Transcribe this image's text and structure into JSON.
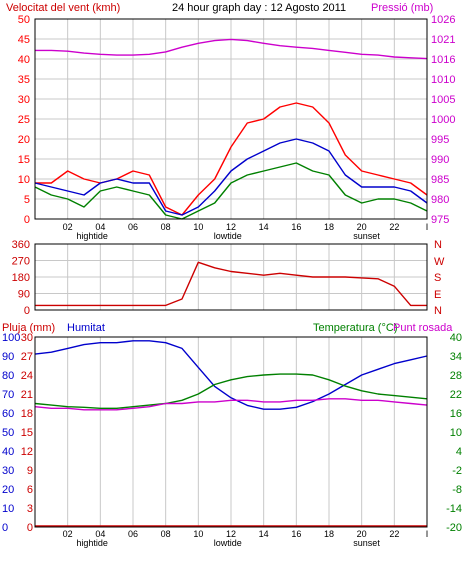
{
  "header": {
    "wind_title": "Velocitat del vent (kmh)",
    "graph_title": "24 hour graph day : 12 Agosto 2011",
    "pressure_title": "Pressió (mb)"
  },
  "bottom_header": {
    "rain_label": "Pluja (mm)",
    "humidity_label": "Humitat",
    "temperature_label": "Temperatura (°C)",
    "dewpoint_label": "Punt rosada"
  },
  "x_axis": {
    "tick_labels": [
      "02",
      "04",
      "06",
      "08",
      "10",
      "12",
      "14",
      "16",
      "18",
      "20",
      "22",
      "I"
    ],
    "event_labels": [
      {
        "label": "hightide",
        "hour": 3.5
      },
      {
        "label": "lowtide",
        "hour": 11.8
      },
      {
        "label": "sunset",
        "hour": 20.3
      }
    ]
  },
  "colors": {
    "frame": "#000000",
    "grid": "#c8c8c8",
    "wind_speed": "#ff0000",
    "wind_avg": "#0000cc",
    "wind_min": "#008000",
    "pressure": "#cc00cc",
    "wind_dir": "#cc0000",
    "humidity": "#0000cc",
    "temperature": "#008000",
    "dewpoint": "#cc00cc",
    "rain": "#cc0000",
    "compass": "#cc0000"
  },
  "chart_data": [
    {
      "id": "wind_pressure",
      "type": "line",
      "title": "24 hour graph day : 12 Agosto 2011",
      "ylabel_left": "Velocitat del vent (kmh)",
      "ylabel_right": "Pressió (mb)",
      "ylim_left": [
        0,
        50
      ],
      "yticks_left": [
        0,
        5,
        10,
        15,
        20,
        25,
        30,
        35,
        40,
        45,
        50
      ],
      "ylim_right": [
        975,
        1026
      ],
      "yticks_right": [
        975,
        980,
        985,
        990,
        995,
        1000,
        1005,
        1010,
        1016,
        1021,
        1026
      ],
      "x_hours": [
        0,
        1,
        2,
        3,
        4,
        5,
        6,
        7,
        8,
        9,
        10,
        11,
        12,
        13,
        14,
        15,
        16,
        17,
        18,
        19,
        20,
        21,
        22,
        23,
        24
      ],
      "series": [
        {
          "axis": "left",
          "color": "#ff0000",
          "values": [
            9,
            9,
            12,
            10,
            9,
            10,
            12,
            11,
            3,
            1,
            6,
            10,
            18,
            24,
            25,
            28,
            29,
            28,
            24,
            16,
            12,
            11,
            10,
            9,
            6
          ]
        },
        {
          "axis": "left",
          "color": "#0000cc",
          "values": [
            9,
            8,
            7,
            6,
            9,
            10,
            9,
            9,
            2,
            1,
            3,
            7,
            12,
            15,
            17,
            19,
            20,
            19,
            17,
            11,
            8,
            8,
            8,
            7,
            4
          ]
        },
        {
          "axis": "left",
          "color": "#008000",
          "values": [
            8,
            6,
            5,
            3,
            7,
            8,
            7,
            6,
            1,
            0,
            2,
            4,
            9,
            11,
            12,
            13,
            14,
            12,
            11,
            6,
            4,
            5,
            5,
            4,
            2
          ]
        },
        {
          "axis": "right",
          "color": "#cc00cc",
          "values": [
            1018.0,
            1018.0,
            1017.8,
            1017.3,
            1017.0,
            1016.8,
            1016.8,
            1017.0,
            1017.6,
            1018.8,
            1019.8,
            1020.5,
            1020.8,
            1020.5,
            1019.8,
            1019.2,
            1018.8,
            1018.5,
            1018.0,
            1017.5,
            1017.0,
            1016.8,
            1016.3,
            1016.1,
            1015.9
          ]
        }
      ]
    },
    {
      "id": "wind_direction",
      "type": "line",
      "ylim": [
        0,
        360
      ],
      "yticks": [
        0,
        90,
        180,
        270,
        360
      ],
      "compass_labels": [
        "N",
        "W",
        "S",
        "E",
        "N"
      ],
      "x_hours": [
        0,
        1,
        2,
        3,
        4,
        5,
        6,
        7,
        8,
        9,
        10,
        11,
        12,
        13,
        14,
        15,
        16,
        17,
        18,
        19,
        20,
        21,
        22,
        23,
        24
      ],
      "series": [
        {
          "color": "#cc0000",
          "values": [
            25,
            25,
            25,
            25,
            25,
            25,
            25,
            25,
            25,
            60,
            260,
            230,
            210,
            200,
            190,
            200,
            190,
            180,
            180,
            180,
            175,
            170,
            130,
            25,
            25
          ]
        }
      ]
    },
    {
      "id": "humidity_temperature",
      "type": "line",
      "ylabel_left_rain": "Pluja (mm)",
      "ylabel_left_humidity": "Humitat",
      "ylabel_right": "Temperatura (°C)",
      "ylabel_right_dewpoint": "Punt rosada",
      "rain_ticks": [
        0,
        3,
        6,
        9,
        12,
        15,
        18,
        21,
        24,
        27,
        30
      ],
      "humidity_ticks": [
        0,
        10,
        20,
        30,
        40,
        50,
        60,
        70,
        80,
        90,
        100
      ],
      "ylim_humidity": [
        0,
        100
      ],
      "temperature_ticks": [
        -20,
        -14,
        -8,
        -2,
        4,
        10,
        16,
        22,
        28,
        34,
        40
      ],
      "ylim_temperature": [
        -20,
        40
      ],
      "x_hours": [
        0,
        1,
        2,
        3,
        4,
        5,
        6,
        7,
        8,
        9,
        10,
        11,
        12,
        13,
        14,
        15,
        16,
        17,
        18,
        19,
        20,
        21,
        22,
        23,
        24
      ],
      "series": [
        {
          "color": "#0000cc",
          "values": [
            91,
            92,
            94,
            96,
            97,
            97,
            98,
            98,
            97,
            94,
            84,
            74,
            68,
            64,
            62,
            62,
            63,
            66,
            70,
            75,
            80,
            83,
            86,
            88,
            90
          ]
        },
        {
          "axis": "right",
          "color": "#008000",
          "values": [
            19.0,
            18.5,
            18.0,
            17.8,
            17.5,
            17.5,
            18.0,
            18.5,
            19.0,
            20.0,
            22.0,
            25.0,
            26.5,
            27.5,
            28.0,
            28.3,
            28.3,
            28.0,
            26.5,
            24.5,
            23.0,
            22.0,
            21.5,
            21.0,
            20.5
          ]
        },
        {
          "axis": "right",
          "color": "#cc00cc",
          "values": [
            18.0,
            17.5,
            17.5,
            17.0,
            17.0,
            17.0,
            17.5,
            18.0,
            19.0,
            19.0,
            19.5,
            19.5,
            20.0,
            20.0,
            19.5,
            19.5,
            20.0,
            20.0,
            20.5,
            20.5,
            20.0,
            20.0,
            19.5,
            19.0,
            18.5
          ]
        },
        {
          "axis": "rain",
          "color": "#cc0000",
          "values": [
            0,
            0,
            0,
            0,
            0,
            0,
            0,
            0,
            0,
            0,
            0,
            0,
            0,
            0,
            0,
            0,
            0,
            0,
            0,
            0,
            0,
            0,
            0,
            0,
            0
          ]
        }
      ]
    }
  ]
}
